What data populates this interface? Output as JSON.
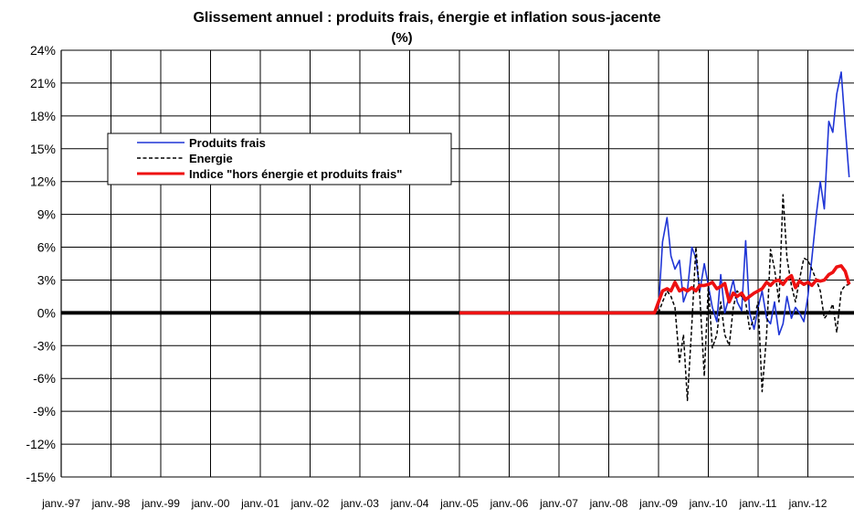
{
  "chart_data": {
    "type": "line",
    "title": "Glissement annuel : produits frais, énergie et inflation sous-jacente",
    "subtitle": "(%)",
    "xlabel": "",
    "ylabel": "",
    "x_ticks": [
      "janv.-97",
      "janv.-98",
      "janv.-99",
      "janv.-00",
      "janv.-01",
      "janv.-02",
      "janv.-03",
      "janv.-04",
      "janv.-05",
      "janv.-06",
      "janv.-07",
      "janv.-08",
      "janv.-09",
      "janv.-10",
      "janv.-11",
      "janv.-12"
    ],
    "y_ticks": [
      "24%",
      "21%",
      "18%",
      "15%",
      "12%",
      "9%",
      "6%",
      "3%",
      "0%",
      "-3%",
      "-6%",
      "-9%",
      "-12%",
      "-15%"
    ],
    "ylim": [
      -15,
      24
    ],
    "grid": true,
    "legend": "top-left",
    "series": [
      {
        "name": "Produits frais",
        "color": "#1f35d6",
        "style": "solid",
        "points": [
          [
            2009.0,
            0.5
          ],
          [
            2009.08,
            6.5
          ],
          [
            2009.17,
            8.7
          ],
          [
            2009.25,
            5.2
          ],
          [
            2009.33,
            4.0
          ],
          [
            2009.42,
            4.8
          ],
          [
            2009.5,
            1.0
          ],
          [
            2009.58,
            2.0
          ],
          [
            2009.67,
            6.0
          ],
          [
            2009.75,
            5.0
          ],
          [
            2009.83,
            2.0
          ],
          [
            2009.92,
            4.5
          ],
          [
            2010.0,
            2.5
          ],
          [
            2010.08,
            0.5
          ],
          [
            2010.17,
            -0.8
          ],
          [
            2010.25,
            3.5
          ],
          [
            2010.33,
            0.0
          ],
          [
            2010.42,
            1.5
          ],
          [
            2010.5,
            3.0
          ],
          [
            2010.58,
            1.0
          ],
          [
            2010.67,
            0.2
          ],
          [
            2010.75,
            6.6
          ],
          [
            2010.83,
            0.0
          ],
          [
            2010.92,
            -1.5
          ],
          [
            2011.0,
            0.5
          ],
          [
            2011.08,
            2.0
          ],
          [
            2011.17,
            -0.5
          ],
          [
            2011.25,
            -1.0
          ],
          [
            2011.33,
            1.0
          ],
          [
            2011.42,
            -2.0
          ],
          [
            2011.5,
            -1.0
          ],
          [
            2011.58,
            1.5
          ],
          [
            2011.67,
            -0.5
          ],
          [
            2011.75,
            0.5
          ],
          [
            2011.83,
            0.0
          ],
          [
            2011.92,
            -0.8
          ],
          [
            2012.0,
            1.5
          ],
          [
            2012.08,
            5.0
          ],
          [
            2012.17,
            9.0
          ],
          [
            2012.25,
            12.0
          ],
          [
            2012.33,
            9.5
          ],
          [
            2012.42,
            17.5
          ],
          [
            2012.5,
            16.5
          ],
          [
            2012.58,
            20.0
          ],
          [
            2012.67,
            22.0
          ],
          [
            2012.75,
            17.0
          ],
          [
            2012.83,
            12.4
          ]
        ]
      },
      {
        "name": "Energie",
        "color": "#000000",
        "style": "dashed",
        "points": [
          [
            2009.0,
            0.0
          ],
          [
            2009.08,
            1.0
          ],
          [
            2009.17,
            2.0
          ],
          [
            2009.25,
            1.5
          ],
          [
            2009.33,
            0.5
          ],
          [
            2009.42,
            -4.5
          ],
          [
            2009.5,
            -2.0
          ],
          [
            2009.58,
            -8.0
          ],
          [
            2009.67,
            -1.0
          ],
          [
            2009.75,
            6.0
          ],
          [
            2009.83,
            1.5
          ],
          [
            2009.92,
            -5.8
          ],
          [
            2010.0,
            2.5
          ],
          [
            2010.08,
            -3.2
          ],
          [
            2010.17,
            -2.0
          ],
          [
            2010.25,
            1.0
          ],
          [
            2010.33,
            -2.0
          ],
          [
            2010.42,
            -3.0
          ],
          [
            2010.5,
            0.5
          ],
          [
            2010.58,
            2.0
          ],
          [
            2010.67,
            1.5
          ],
          [
            2010.75,
            1.0
          ],
          [
            2010.83,
            -1.5
          ],
          [
            2010.92,
            -0.5
          ],
          [
            2011.0,
            1.0
          ],
          [
            2011.08,
            -7.2
          ],
          [
            2011.17,
            -2.0
          ],
          [
            2011.25,
            5.8
          ],
          [
            2011.33,
            4.0
          ],
          [
            2011.42,
            1.0
          ],
          [
            2011.5,
            10.8
          ],
          [
            2011.58,
            5.0
          ],
          [
            2011.67,
            2.5
          ],
          [
            2011.75,
            1.0
          ],
          [
            2011.83,
            3.0
          ],
          [
            2011.92,
            5.0
          ],
          [
            2012.0,
            4.8
          ],
          [
            2012.08,
            4.0
          ],
          [
            2012.17,
            3.0
          ],
          [
            2012.25,
            2.0
          ],
          [
            2012.33,
            -0.5
          ],
          [
            2012.42,
            0.0
          ],
          [
            2012.5,
            0.8
          ],
          [
            2012.58,
            -1.8
          ],
          [
            2012.67,
            2.0
          ],
          [
            2012.75,
            2.5
          ],
          [
            2012.83,
            2.6
          ]
        ]
      },
      {
        "name": "Indice \"hors énergie et produits frais\"",
        "color": "#ee1111",
        "style": "solid",
        "points": [
          [
            2005.0,
            0.0
          ],
          [
            2006.0,
            0.0
          ],
          [
            2007.0,
            0.0
          ],
          [
            2008.0,
            0.0
          ],
          [
            2008.92,
            0.0
          ],
          [
            2009.0,
            1.0
          ],
          [
            2009.08,
            2.0
          ],
          [
            2009.17,
            2.2
          ],
          [
            2009.25,
            2.0
          ],
          [
            2009.33,
            2.8
          ],
          [
            2009.42,
            2.0
          ],
          [
            2009.5,
            2.2
          ],
          [
            2009.58,
            2.0
          ],
          [
            2009.67,
            2.3
          ],
          [
            2009.75,
            2.0
          ],
          [
            2009.83,
            2.5
          ],
          [
            2009.92,
            2.5
          ],
          [
            2010.0,
            2.6
          ],
          [
            2010.08,
            2.8
          ],
          [
            2010.17,
            2.2
          ],
          [
            2010.25,
            2.4
          ],
          [
            2010.33,
            2.7
          ],
          [
            2010.42,
            1.0
          ],
          [
            2010.5,
            1.8
          ],
          [
            2010.58,
            1.5
          ],
          [
            2010.67,
            1.8
          ],
          [
            2010.75,
            1.2
          ],
          [
            2010.83,
            1.5
          ],
          [
            2010.92,
            1.8
          ],
          [
            2011.0,
            2.0
          ],
          [
            2011.08,
            2.2
          ],
          [
            2011.17,
            2.8
          ],
          [
            2011.25,
            2.5
          ],
          [
            2011.33,
            2.9
          ],
          [
            2011.42,
            3.0
          ],
          [
            2011.5,
            2.6
          ],
          [
            2011.58,
            3.1
          ],
          [
            2011.67,
            3.4
          ],
          [
            2011.75,
            2.3
          ],
          [
            2011.83,
            2.9
          ],
          [
            2011.92,
            2.6
          ],
          [
            2012.0,
            2.8
          ],
          [
            2012.08,
            2.5
          ],
          [
            2012.17,
            3.0
          ],
          [
            2012.25,
            2.9
          ],
          [
            2012.33,
            3.0
          ],
          [
            2012.42,
            3.5
          ],
          [
            2012.5,
            3.7
          ],
          [
            2012.58,
            4.2
          ],
          [
            2012.67,
            4.3
          ],
          [
            2012.75,
            3.8
          ],
          [
            2012.83,
            2.6
          ]
        ]
      }
    ]
  }
}
